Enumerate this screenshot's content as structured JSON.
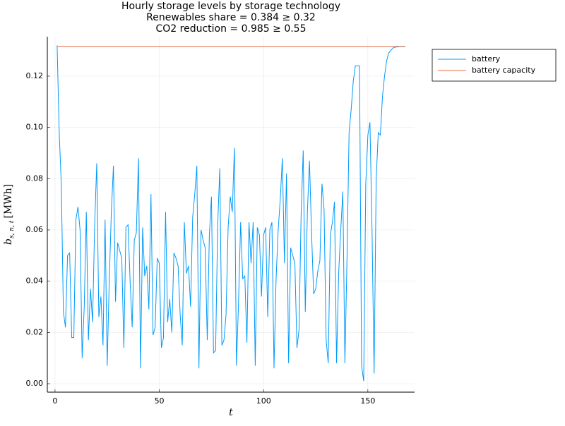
{
  "chart_data": {
    "type": "line",
    "title": [
      "Hourly storage levels by storage technology",
      "Renewables share = 0.384 ≥ 0.32",
      "CO2 reduction = 0.985 ≥ 0.55"
    ],
    "xlabel": "t",
    "ylabel": {
      "symbol": "b",
      "subscript": "s, n, t",
      "unit": "[MWh]"
    },
    "xlim": [
      -3.7,
      172.4
    ],
    "ylim": [
      -0.0033,
      0.1354
    ],
    "xticks": [
      0,
      50,
      100,
      150
    ],
    "yticks": [
      {
        "value": 0,
        "label": "0.00"
      },
      {
        "value": 0.02,
        "label": "0.02"
      },
      {
        "value": 0.04,
        "label": "0.04"
      },
      {
        "value": 0.06,
        "label": "0.06"
      },
      {
        "value": 0.08,
        "label": "0.08"
      },
      {
        "value": 0.1,
        "label": "0.10"
      },
      {
        "value": 0.12,
        "label": "0.12"
      }
    ],
    "grid": true,
    "legend": "outside-top-right",
    "series": [
      {
        "name": "battery",
        "color": "#009AFA",
        "x": [
          1,
          2,
          3,
          4,
          5,
          6,
          7,
          8,
          9,
          10,
          11,
          12,
          13,
          14,
          15,
          16,
          17,
          18,
          19,
          20,
          21,
          22,
          23,
          24,
          25,
          26,
          27,
          28,
          29,
          30,
          31,
          32,
          33,
          34,
          35,
          36,
          37,
          38,
          39,
          40,
          41,
          42,
          43,
          44,
          45,
          46,
          47,
          48,
          49,
          50,
          51,
          52,
          53,
          54,
          55,
          56,
          57,
          58,
          59,
          60,
          61,
          62,
          63,
          64,
          65,
          66,
          67,
          68,
          69,
          70,
          71,
          72,
          73,
          74,
          75,
          76,
          77,
          78,
          79,
          80,
          81,
          82,
          83,
          84,
          85,
          86,
          87,
          88,
          89,
          90,
          91,
          92,
          93,
          94,
          95,
          96,
          97,
          98,
          99,
          100,
          101,
          102,
          103,
          104,
          105,
          106,
          107,
          108,
          109,
          110,
          111,
          112,
          113,
          114,
          115,
          116,
          117,
          118,
          119,
          120,
          121,
          122,
          123,
          124,
          125,
          126,
          127,
          128,
          129,
          130,
          131,
          132,
          133,
          134,
          135,
          136,
          137,
          138,
          139,
          140,
          141,
          142,
          143,
          144,
          145,
          146,
          147,
          148,
          149,
          150,
          151,
          152,
          153,
          154,
          155,
          156,
          157,
          158,
          159,
          160,
          161,
          162,
          163,
          164,
          165,
          166,
          167,
          168
        ],
        "values": [
          0.132,
          0.098,
          0.078,
          0.028,
          0.022,
          0.05,
          0.051,
          0.018,
          0.018,
          0.064,
          0.069,
          0.06,
          0.01,
          0.03,
          0.067,
          0.017,
          0.037,
          0.024,
          0.062,
          0.086,
          0.026,
          0.034,
          0.015,
          0.064,
          0.007,
          0.04,
          0.067,
          0.085,
          0.032,
          0.055,
          0.052,
          0.049,
          0.014,
          0.061,
          0.062,
          0.04,
          0.022,
          0.056,
          0.059,
          0.088,
          0.006,
          0.061,
          0.042,
          0.046,
          0.029,
          0.074,
          0.019,
          0.022,
          0.049,
          0.047,
          0.014,
          0.018,
          0.067,
          0.024,
          0.033,
          0.02,
          0.051,
          0.049,
          0.046,
          0.027,
          0.015,
          0.063,
          0.043,
          0.046,
          0.03,
          0.065,
          0.074,
          0.085,
          0.006,
          0.06,
          0.056,
          0.053,
          0.017,
          0.058,
          0.073,
          0.012,
          0.013,
          0.062,
          0.084,
          0.015,
          0.017,
          0.027,
          0.061,
          0.073,
          0.067,
          0.092,
          0.007,
          0.032,
          0.063,
          0.041,
          0.042,
          0.016,
          0.063,
          0.047,
          0.063,
          0.007,
          0.061,
          0.058,
          0.034,
          0.058,
          0.061,
          0.026,
          0.06,
          0.063,
          0.006,
          0.041,
          0.06,
          0.072,
          0.088,
          0.047,
          0.082,
          0.008,
          0.053,
          0.05,
          0.047,
          0.014,
          0.021,
          0.066,
          0.091,
          0.028,
          0.067,
          0.087,
          0.059,
          0.035,
          0.037,
          0.044,
          0.048,
          0.078,
          0.068,
          0.017,
          0.008,
          0.058,
          0.063,
          0.071,
          0.008,
          0.043,
          0.06,
          0.075,
          0.008,
          0.049,
          0.098,
          0.107,
          0.118,
          0.124,
          0.124,
          0.124,
          0.007,
          0.001,
          0.078,
          0.097,
          0.102,
          0.06,
          0.004,
          0.08,
          0.098,
          0.097,
          0.112,
          0.12,
          0.126,
          0.129,
          0.13,
          0.131,
          0.1313,
          0.1314,
          0.1315,
          0.1316,
          0.1316,
          0.1316
        ]
      },
      {
        "name": "battery capacity",
        "color": "#E36F47",
        "x": [
          1,
          168
        ],
        "values": [
          0.1316,
          0.1316
        ]
      }
    ]
  }
}
